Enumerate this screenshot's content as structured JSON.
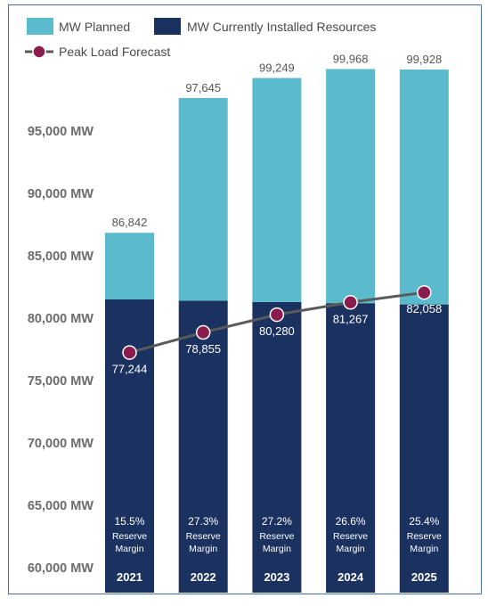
{
  "chart_data": {
    "type": "bar",
    "categories": [
      "2021",
      "2022",
      "2023",
      "2024",
      "2025"
    ],
    "series": [
      {
        "name": "MW Currently Installed Resources",
        "values": [
          81500,
          81400,
          81300,
          81200,
          81100
        ]
      },
      {
        "name": "MW Planned",
        "values": [
          5342,
          16245,
          17949,
          18768,
          18828
        ]
      }
    ],
    "totals": [
      "86,842",
      "97,645",
      "99,249",
      "99,968",
      "99,928"
    ],
    "total_values": [
      86842,
      97645,
      99249,
      99968,
      99928
    ],
    "line": {
      "name": "Peak Load Forecast",
      "values": [
        77244,
        78855,
        80280,
        81267,
        82058
      ],
      "labels": [
        "77,244",
        "78,855",
        "80,280",
        "81,267",
        "82,058"
      ]
    },
    "reserve_margin": {
      "percents": [
        "15.5%",
        "27.3%",
        "27.2%",
        "26.6%",
        "25.4%"
      ],
      "line1": "Reserve",
      "line2": "Margin"
    },
    "yticks": [
      {
        "value": 60000,
        "label": "60,000 MW"
      },
      {
        "value": 65000,
        "label": "65,000 MW"
      },
      {
        "value": 70000,
        "label": "70,000 MW"
      },
      {
        "value": 75000,
        "label": "75,000 MW"
      },
      {
        "value": 80000,
        "label": "80,000 MW"
      },
      {
        "value": 85000,
        "label": "85,000 MW"
      },
      {
        "value": 90000,
        "label": "90,000 MW"
      },
      {
        "value": 95000,
        "label": "95,000 MW"
      }
    ],
    "ylim": [
      58000,
      100500
    ],
    "legend": {
      "planned": "MW Planned",
      "installed": "MW Currently Installed Resources",
      "peak": "Peak Load Forecast",
      "position": "top-left"
    },
    "colors": {
      "planned": "#5bbbcc",
      "installed": "#1b3160",
      "line": "#5a5a5a",
      "marker": "#8a1d4e"
    }
  }
}
